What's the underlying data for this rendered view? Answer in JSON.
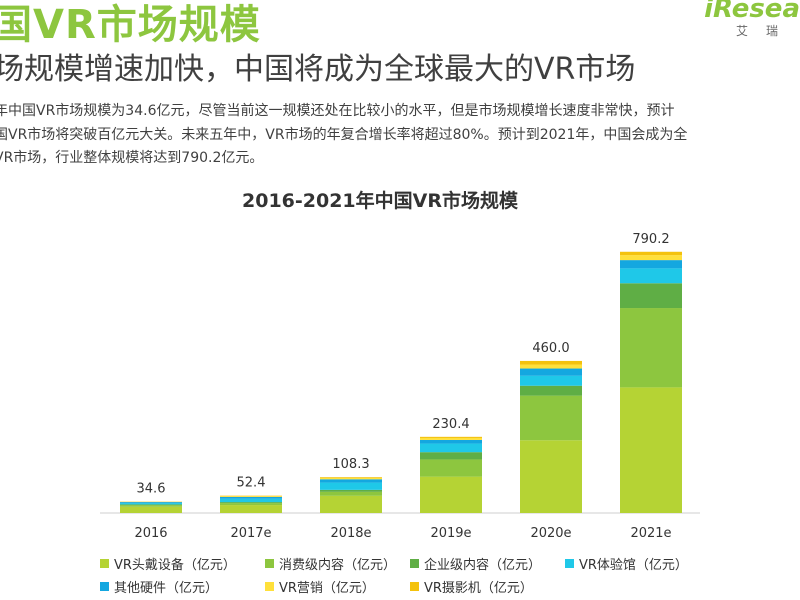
{
  "header": {
    "title": "国VR市场规模",
    "brand_logo": "iResea",
    "brand_sub": "艾瑞",
    "subtitle": "场规模增速加快，中国将成为全球最大的VR市场",
    "paragraph": "年中国VR市场规模为34.6亿元，尽管当前这一规模还处在比较小的水平，但是市场规模增长速度非常快，预计\n国VR市场将突破百亿元大关。未来五年中，VR市场的年复合增长率将超过80%。预计到2021年，中国会成为全\nVR市场，行业整体规模将达到790.2亿元。"
  },
  "chart_data": {
    "type": "bar",
    "stacked": true,
    "title": "2016-2021年中国VR市场规模",
    "categories": [
      "2016",
      "2017e",
      "2018e",
      "2019e",
      "2020e",
      "2021e"
    ],
    "totals": [
      34.6,
      52.4,
      108.3,
      230.4,
      460.0,
      790.2
    ],
    "total_labels": [
      "34.6",
      "52.4",
      "108.3",
      "230.4",
      "460.0",
      "790.2"
    ],
    "ylim": [
      0,
      850
    ],
    "series": [
      {
        "name": "VR头戴设备（亿元）",
        "color": "#b5d334",
        "values": [
          19.0,
          24.0,
          52.0,
          110.0,
          220.0,
          380.0
        ]
      },
      {
        "name": "消费级内容（亿元）",
        "color": "#8dc63f",
        "values": [
          5.0,
          6.0,
          12.0,
          52.0,
          135.0,
          240.0
        ]
      },
      {
        "name": "企业级内容（亿元）",
        "color": "#5fae45",
        "values": [
          2.0,
          3.0,
          6.0,
          22.0,
          30.0,
          75.0
        ]
      },
      {
        "name": "VR体验馆（亿元）",
        "color": "#1fc8e8",
        "values": [
          4.0,
          10.0,
          22.0,
          26.0,
          30.0,
          45.0
        ]
      },
      {
        "name": "其他硬件（亿元）",
        "color": "#14a7e0",
        "values": [
          3.0,
          5.5,
          10.0,
          11.0,
          22.0,
          25.0
        ]
      },
      {
        "name": "VR营销（亿元）",
        "color": "#ffe03a",
        "values": [
          1.0,
          2.5,
          4.0,
          6.0,
          12.0,
          15.0
        ]
      },
      {
        "name": "VR摄影机（亿元）",
        "color": "#f4c20d",
        "values": [
          0.6,
          1.4,
          2.3,
          3.4,
          11.0,
          10.2
        ]
      }
    ]
  }
}
